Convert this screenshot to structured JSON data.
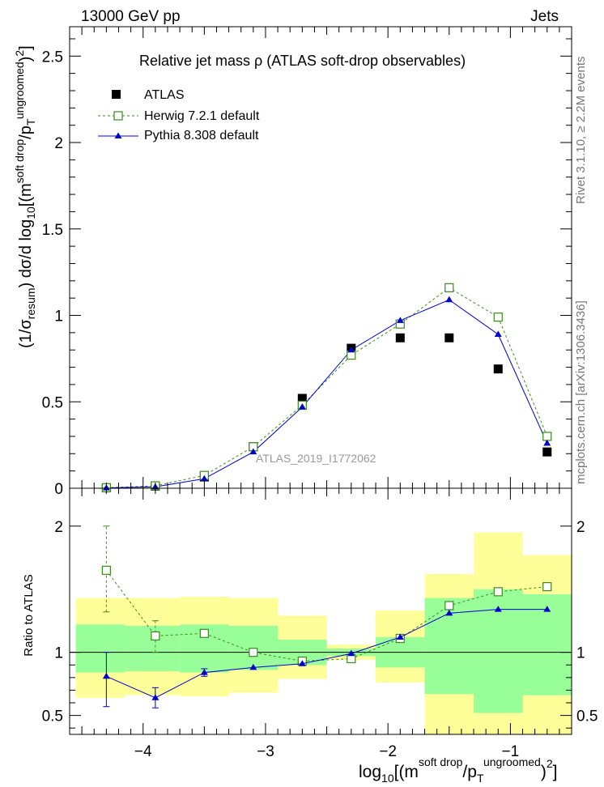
{
  "header": {
    "left": "13000 GeV pp",
    "right": "Jets"
  },
  "side_labels": {
    "rivet": "Rivet 3.1.10, ≥ 2.2M events",
    "mcplots": "mcplots.cern.ch [arXiv:1306.3436]"
  },
  "plot_title": "Relative jet mass  ρ (ATLAS soft-drop observables)",
  "analysis_label": "ATLAS_2019_I1772062",
  "legend": [
    {
      "name": "ATLAS",
      "marker": "square-filled",
      "color": "#000000"
    },
    {
      "name": "Herwig 7.2.1 default",
      "marker": "square-open",
      "color": "#3a8a1e"
    },
    {
      "name": "Pythia 8.308 default",
      "marker": "triangle-filled",
      "color": "#0000cc"
    }
  ],
  "axis_text": {
    "ylabel_main": "(1/σresum) dσ/d log10[(m soft drop/pT ungroomed)2]",
    "ylabel_ratio": "Ratio to ATLAS",
    "xlabel": "log10[(m soft drop/pT ungroomed)2]"
  },
  "chart_data": [
    {
      "type": "scatter",
      "panel": "main",
      "xlim": [
        -4.6,
        -0.5
      ],
      "ylim": [
        0,
        2.67
      ],
      "xticks": [
        -4,
        -3,
        -2,
        -1
      ],
      "yticks": [
        0,
        0.5,
        1,
        1.5,
        2,
        2.5
      ],
      "ytick_labels": [
        "0",
        "0.5",
        "1",
        "1.5",
        "2",
        "2.5"
      ],
      "x": [
        -4.3,
        -3.9,
        -3.5,
        -3.1,
        -2.7,
        -2.3,
        -1.9,
        -1.5,
        -1.1,
        -0.7
      ],
      "series": [
        {
          "name": "ATLAS",
          "values": [
            0.002,
            0.012,
            0.065,
            0.24,
            0.52,
            0.81,
            0.87,
            0.87,
            0.69,
            0.21
          ]
        },
        {
          "name": "Herwig 7.2.1 default",
          "values": [
            0.003,
            0.014,
            0.074,
            0.24,
            0.48,
            0.77,
            0.95,
            1.16,
            0.99,
            0.3
          ]
        },
        {
          "name": "Pythia 8.308 default",
          "values": [
            0.002,
            0.008,
            0.055,
            0.21,
            0.47,
            0.8,
            0.97,
            1.09,
            0.89,
            0.26
          ]
        }
      ]
    },
    {
      "type": "scatter",
      "panel": "ratio",
      "xlim": [
        -4.6,
        -0.5
      ],
      "ylim": [
        0.35,
        2.3
      ],
      "xticks": [
        -4,
        -3,
        -2,
        -1
      ],
      "xtick_labels": [
        "−4",
        "−3",
        "−2",
        "−1"
      ],
      "yticks": [
        0.5,
        1,
        2
      ],
      "ytick_labels": [
        "0.5",
        "1",
        "2"
      ],
      "reference": 1,
      "bins": [
        {
          "lo": -4.55,
          "hi": -4.15,
          "green": [
            0.84,
            1.22
          ],
          "yellow": [
            0.64,
            1.43
          ]
        },
        {
          "lo": -4.15,
          "hi": -3.7,
          "green": [
            0.85,
            1.21
          ],
          "yellow": [
            0.66,
            1.43
          ]
        },
        {
          "lo": -3.7,
          "hi": -3.3,
          "green": [
            0.84,
            1.22
          ],
          "yellow": [
            0.65,
            1.44
          ]
        },
        {
          "lo": -3.3,
          "hi": -2.9,
          "green": [
            0.86,
            1.21
          ],
          "yellow": [
            0.68,
            1.43
          ]
        },
        {
          "lo": -2.9,
          "hi": -2.5,
          "green": [
            0.9,
            1.1
          ],
          "yellow": [
            0.79,
            1.29
          ]
        },
        {
          "lo": -2.5,
          "hi": -2.1,
          "green": [
            0.97,
            1.03
          ],
          "yellow": [
            0.94,
            1.06
          ]
        },
        {
          "lo": -2.1,
          "hi": -1.7,
          "green": [
            0.88,
            1.12
          ],
          "yellow": [
            0.76,
            1.33
          ]
        },
        {
          "lo": -1.7,
          "hi": -1.3,
          "green": [
            0.67,
            1.43
          ],
          "yellow": [
            0.35,
            1.62
          ]
        },
        {
          "lo": -1.3,
          "hi": -0.9,
          "green": [
            0.52,
            1.5
          ],
          "yellow": [
            0.35,
            1.95
          ]
        },
        {
          "lo": -0.9,
          "hi": -0.5,
          "green": [
            0.66,
            1.46
          ],
          "yellow": [
            0.35,
            1.77
          ]
        }
      ],
      "x": [
        -4.3,
        -3.9,
        -3.5,
        -3.1,
        -2.7,
        -2.3,
        -1.9,
        -1.5,
        -1.1,
        -0.7
      ],
      "series": [
        {
          "name": "Herwig 7.2.1 default",
          "values": [
            1.65,
            1.13,
            1.15,
            1.0,
            0.93,
            0.95,
            1.11,
            1.37,
            1.48,
            1.52
          ],
          "err_lo": [
            1.32,
            1.0,
            1.12,
            1.0,
            0.93,
            0.95,
            1.11,
            1.37,
            1.48,
            1.52
          ],
          "err_hi": [
            2.0,
            1.25,
            1.18,
            1.0,
            0.93,
            0.95,
            1.11,
            1.37,
            1.48,
            1.52
          ]
        },
        {
          "name": "Pythia 8.308 default",
          "values": [
            0.81,
            0.64,
            0.84,
            0.88,
            0.91,
            0.99,
            1.12,
            1.31,
            1.34,
            1.34
          ],
          "err_lo": [
            0.57,
            0.56,
            0.81,
            0.88,
            0.91,
            0.99,
            1.12,
            1.31,
            1.34,
            1.34
          ],
          "err_hi": [
            1.0,
            0.72,
            0.87,
            0.88,
            0.91,
            0.99,
            1.12,
            1.31,
            1.34,
            1.34
          ]
        }
      ]
    }
  ]
}
